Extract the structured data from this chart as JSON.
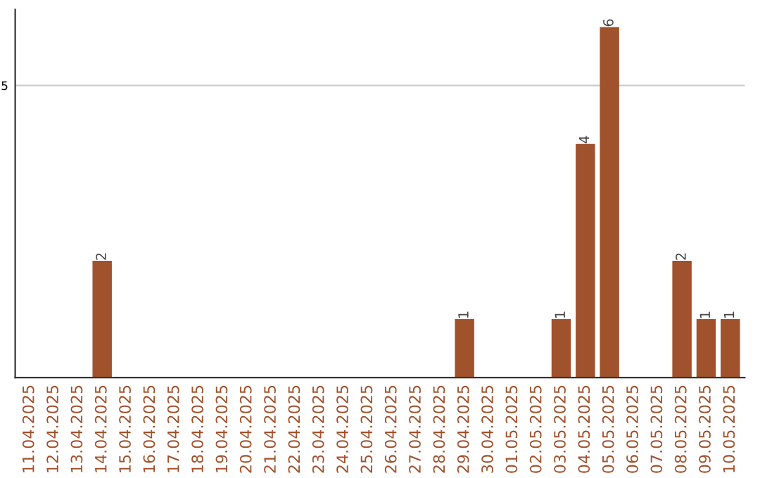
{
  "chart_data": {
    "type": "bar",
    "categories": [
      "11.04.2025",
      "12.04.2025",
      "13.04.2025",
      "14.04.2025",
      "15.04.2025",
      "16.04.2025",
      "17.04.2025",
      "18.04.2025",
      "19.04.2025",
      "20.04.2025",
      "21.04.2025",
      "22.04.2025",
      "23.04.2025",
      "24.04.2025",
      "25.04.2025",
      "26.04.2025",
      "27.04.2025",
      "28.04.2025",
      "29.04.2025",
      "30.04.2025",
      "01.05.2025",
      "02.05.2025",
      "03.05.2025",
      "04.05.2025",
      "05.05.2025",
      "06.05.2025",
      "07.05.2025",
      "08.05.2025",
      "09.05.2025",
      "10.05.2025"
    ],
    "values": [
      0,
      0,
      0,
      2,
      0,
      0,
      0,
      0,
      0,
      0,
      0,
      0,
      0,
      0,
      0,
      0,
      0,
      0,
      1,
      0,
      0,
      0,
      1,
      4,
      6,
      0,
      0,
      2,
      1,
      1
    ],
    "value_labels": [
      null,
      null,
      null,
      "2",
      null,
      null,
      null,
      null,
      null,
      null,
      null,
      null,
      null,
      null,
      null,
      null,
      null,
      null,
      "1",
      null,
      null,
      null,
      "1",
      "4",
      "6",
      null,
      null,
      "2",
      "1",
      "1"
    ],
    "color": "#a0522d",
    "ylim": [
      0,
      6.3
    ],
    "yticks": [
      5
    ],
    "grid": "y"
  }
}
